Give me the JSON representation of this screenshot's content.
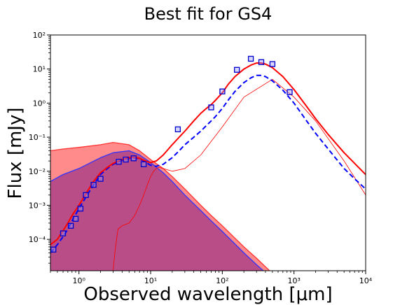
{
  "chart_data": {
    "type": "line",
    "title": "Best fit for GS4",
    "xlabel": "Observed wavelength [μm]",
    "ylabel": "Flux [mJy]",
    "xscale": "log",
    "yscale": "log",
    "xlim": [
      0.4,
      10000
    ],
    "ylim": [
      1.2e-05,
      100
    ],
    "x_ticks": [
      {
        "value": 1,
        "label": "10⁰"
      },
      {
        "value": 10,
        "label": "10¹"
      },
      {
        "value": 100,
        "label": "10²"
      },
      {
        "value": 1000,
        "label": "10³"
      },
      {
        "value": 10000,
        "label": "10⁴"
      }
    ],
    "y_ticks": [
      {
        "value": 0.0001,
        "label": "10⁻⁴"
      },
      {
        "value": 0.001,
        "label": "10⁻³"
      },
      {
        "value": 0.01,
        "label": "10⁻²"
      },
      {
        "value": 0.1,
        "label": "10⁻¹"
      },
      {
        "value": 1,
        "label": "10⁰"
      },
      {
        "value": 10,
        "label": "10¹"
      },
      {
        "value": 100,
        "label": "10²"
      }
    ],
    "colors": {
      "total": "#ff0000",
      "total_attenuated": "#0000ff",
      "stellar_unattenuated": "#ff3333",
      "stellar_attenuated": "#3333ff",
      "young_stars": "#ff0000",
      "band_fill": "#ff7777",
      "band_fill_dark": "#b03a7a",
      "observed": "#0000cc"
    },
    "series": [
      {
        "key": "total",
        "style": "solid",
        "x": [
          0.4,
          0.5,
          0.6,
          0.7,
          0.8,
          1.0,
          1.3,
          1.6,
          2.0,
          2.5,
          3.0,
          4.0,
          5.0,
          6.0,
          7.0,
          8.0,
          9.0,
          10,
          12,
          15,
          20,
          25,
          30,
          40,
          50,
          60,
          70,
          80,
          100,
          120,
          150,
          200,
          250,
          300,
          350,
          400,
          500,
          700,
          1000,
          1500,
          2000,
          3000,
          5000,
          7000,
          10000
        ],
        "y": [
          7e-05,
          0.0001,
          0.00018,
          0.0003,
          0.0005,
          0.001,
          0.0025,
          0.005,
          0.009,
          0.013,
          0.017,
          0.022,
          0.025,
          0.026,
          0.024,
          0.021,
          0.019,
          0.018,
          0.02,
          0.03,
          0.06,
          0.1,
          0.15,
          0.3,
          0.5,
          0.7,
          0.9,
          1.2,
          2.0,
          3.5,
          6.0,
          10,
          13,
          15,
          15,
          14,
          11,
          6,
          2.5,
          0.8,
          0.35,
          0.12,
          0.035,
          0.017,
          0.008
        ]
      },
      {
        "key": "total_attenuated",
        "style": "dashed",
        "x": [
          0.4,
          0.5,
          0.6,
          0.7,
          0.8,
          1.0,
          1.3,
          1.6,
          2.0,
          2.5,
          3.0,
          4.0,
          5.0,
          6.0,
          7.0,
          8.0,
          9.0,
          10,
          12,
          15,
          20,
          25,
          30,
          40,
          50,
          60,
          70,
          80,
          100,
          120,
          150,
          200,
          250,
          300,
          350,
          400,
          500,
          700,
          1000,
          1500,
          2000,
          3000,
          5000,
          7000,
          10000
        ],
        "y": [
          4e-05,
          7e-05,
          0.00012,
          0.0002,
          0.00035,
          0.0008,
          0.002,
          0.004,
          0.008,
          0.012,
          0.016,
          0.021,
          0.024,
          0.025,
          0.023,
          0.02,
          0.017,
          0.015,
          0.014,
          0.016,
          0.025,
          0.04,
          0.06,
          0.1,
          0.15,
          0.22,
          0.3,
          0.4,
          0.7,
          1.2,
          2.2,
          4.0,
          5.5,
          6.5,
          6.5,
          6.0,
          4.5,
          2.4,
          1.0,
          0.3,
          0.13,
          0.045,
          0.012,
          0.006,
          0.003
        ]
      },
      {
        "key": "stellar_unattenuated",
        "style": "solid",
        "x": [
          0.4,
          0.6,
          1.0,
          2.0,
          3.0,
          5.0,
          7.0,
          10,
          15,
          20,
          30,
          50,
          70,
          100,
          200,
          300,
          500
        ],
        "y": [
          0.04,
          0.045,
          0.05,
          0.06,
          0.07,
          0.06,
          0.04,
          0.022,
          0.012,
          0.007,
          0.003,
          0.001,
          0.0005,
          0.00025,
          6e-05,
          2.8e-05,
          1e-05
        ]
      },
      {
        "key": "stellar_attenuated",
        "style": "solid",
        "x": [
          0.4,
          0.6,
          1.0,
          2.0,
          3.0,
          5.0,
          7.0,
          10,
          15,
          20,
          30,
          50,
          70,
          100,
          200,
          300,
          500
        ],
        "y": [
          0.005,
          0.008,
          0.012,
          0.025,
          0.035,
          0.04,
          0.03,
          0.018,
          0.009,
          0.005,
          0.002,
          0.0007,
          0.00035,
          0.00017,
          4e-05,
          1.8e-05,
          7e-06
        ]
      },
      {
        "key": "young_stars",
        "style": "solid",
        "x": [
          3.0,
          3.2,
          3.5,
          4.0,
          5.0,
          6.0,
          7.0,
          8.0,
          9.0,
          10,
          11,
          12,
          13,
          15,
          20,
          30,
          50,
          100,
          200,
          500,
          1000,
          2000,
          5000,
          10000
        ],
        "y": [
          1.2e-05,
          5e-05,
          0.0002,
          0.00025,
          0.0003,
          0.0005,
          0.001,
          0.002,
          0.004,
          0.007,
          0.01,
          0.012,
          0.013,
          0.012,
          0.01,
          0.012,
          0.03,
          0.2,
          1.5,
          5,
          1.5,
          0.3,
          0.02,
          0.002
        ]
      }
    ],
    "observed": {
      "x": [
        0.44,
        0.6,
        0.77,
        0.9,
        1.05,
        1.25,
        1.6,
        2.0,
        3.6,
        4.5,
        5.8,
        8.0,
        24,
        70,
        100,
        160,
        250,
        350,
        500,
        870
      ],
      "y": [
        5e-05,
        0.00015,
        0.00025,
        0.0004,
        0.0008,
        0.002,
        0.004,
        0.006,
        0.019,
        0.022,
        0.024,
        0.016,
        0.17,
        0.75,
        2.2,
        9.5,
        20,
        16,
        14,
        2.1
      ]
    }
  }
}
